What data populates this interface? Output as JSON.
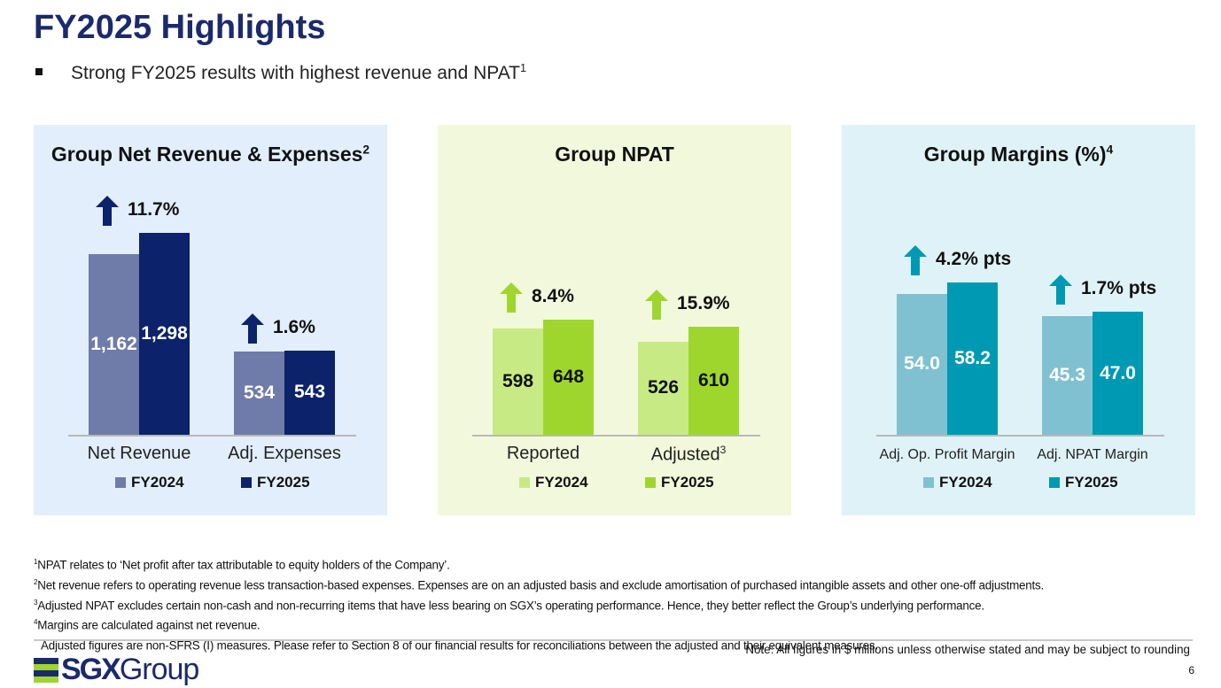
{
  "header": {
    "title": "FY2025 Highlights",
    "bullet": "Strong FY2025 results with highest revenue and NPAT",
    "bullet_note": "1"
  },
  "chart_data": [
    {
      "type": "bar",
      "title": "Group Net Revenue & Expenses",
      "title_note": "2",
      "bg": "#e2eefc",
      "arrow_color": "#0c226a",
      "ylim": [
        0,
        1450
      ],
      "categories": [
        "Net Revenue",
        "Adj. Expenses"
      ],
      "category_notes": [
        "",
        ""
      ],
      "changes": [
        "11.7%",
        "1.6%"
      ],
      "series": [
        {
          "name": "FY2024",
          "color": "#6f7ba8",
          "values": [
            1162,
            534
          ],
          "value_labels": [
            "1,162",
            "534"
          ]
        },
        {
          "name": "FY2025",
          "color": "#0c226a",
          "values": [
            1298,
            543
          ],
          "value_labels": [
            "1,298",
            "543"
          ]
        }
      ]
    },
    {
      "type": "bar",
      "title": "Group NPAT",
      "title_note": "",
      "bg": "#f2f8dc",
      "arrow_color": "#9fd62e",
      "ylim": [
        0,
        1275
      ],
      "categories": [
        "Reported",
        "Adjusted"
      ],
      "category_notes": [
        "",
        "3"
      ],
      "changes": [
        "8.4%",
        "15.9%"
      ],
      "series": [
        {
          "name": "FY2024",
          "color": "#c8ea84",
          "values": [
            598,
            526
          ],
          "value_labels": [
            "598",
            "526"
          ],
          "label_color": "#111"
        },
        {
          "name": "FY2025",
          "color": "#9fd62e",
          "values": [
            648,
            610
          ],
          "value_labels": [
            "648",
            "610"
          ],
          "label_color": "#111"
        }
      ]
    },
    {
      "type": "bar",
      "title": "Group Margins (%)",
      "title_note": "4",
      "bg": "#dff2f7",
      "arrow_color": "#0099b3",
      "ylim": [
        0,
        86.5
      ],
      "categories": [
        "Adj. Op. Profit Margin",
        "Adj. NPAT Margin"
      ],
      "category_notes": [
        "",
        ""
      ],
      "changes": [
        "4.2% pts",
        "1.7% pts"
      ],
      "series": [
        {
          "name": "FY2024",
          "color": "#7fc1d0",
          "values": [
            54.0,
            45.3
          ],
          "value_labels": [
            "54.0",
            "45.3"
          ]
        },
        {
          "name": "FY2025",
          "color": "#0099b3",
          "values": [
            58.2,
            47.0
          ],
          "value_labels": [
            "58.2",
            "47.0"
          ]
        }
      ]
    }
  ],
  "footnotes": [
    {
      "n": "1",
      "text": "NPAT relates to ‘Net profit after tax attributable to equity holders of the Company’."
    },
    {
      "n": "2",
      "text": "Net revenue refers to operating revenue less transaction-based expenses. Expenses are on an adjusted basis and exclude amortisation of purchased intangible assets and other one-off adjustments."
    },
    {
      "n": "3",
      "text": "Adjusted NPAT excludes certain non-cash and non-recurring items that have less bearing on SGX’s operating performance. Hence, they better reflect the Group’s underlying performance."
    },
    {
      "n": "4",
      "text": "Margins are calculated against net revenue."
    },
    {
      "n": "",
      "text": "Adjusted figures are non-SFRS (I) measures. Please refer to Section 8 of our financial results for reconciliations between the adjusted and their equivalent measures."
    }
  ],
  "footer": {
    "note": "Note: All figures in $ millions unless otherwise stated and may be subject to rounding",
    "page": "6",
    "logo_sgx": "SGX",
    "logo_group": "Group"
  }
}
